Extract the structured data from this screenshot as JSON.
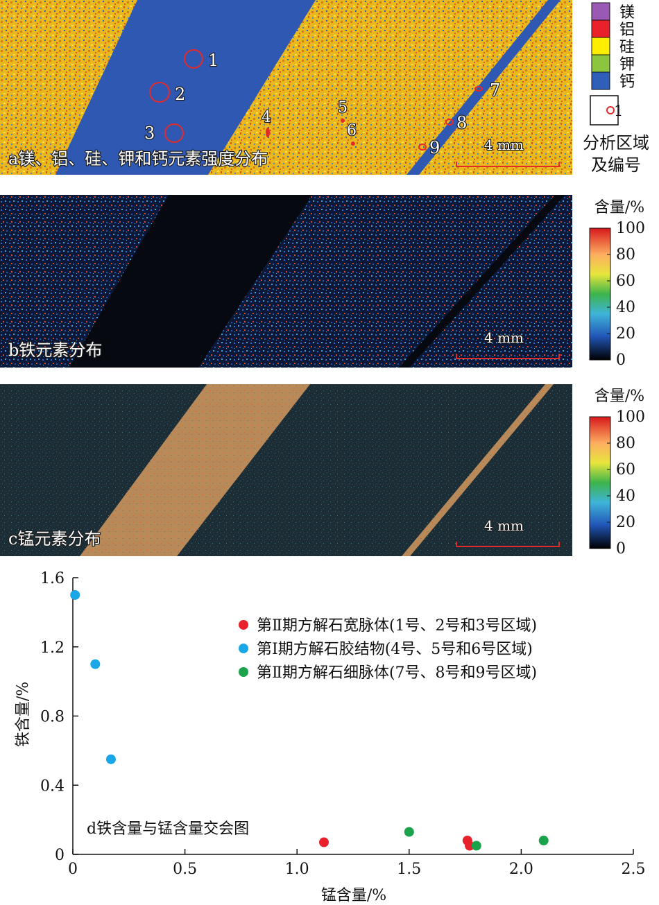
{
  "panel_a": {
    "caption": "a镁、铝、硅、钾和钙元素强度分布",
    "scale": "4 mm",
    "region_labels": [
      "1",
      "2",
      "3",
      "4",
      "5",
      "6",
      "7",
      "8",
      "9"
    ],
    "legend_items": [
      {
        "label": "镁",
        "color": "#9b59b6"
      },
      {
        "label": "铝",
        "color": "#e8212b"
      },
      {
        "label": "硅",
        "color": "#ffee00"
      },
      {
        "label": "钾",
        "color": "#8cc63f"
      },
      {
        "label": "钙",
        "color": "#2f5fb8"
      }
    ],
    "region_marker_label": "1",
    "region_legend_text": [
      "分析区域",
      "及编号"
    ]
  },
  "panel_b": {
    "caption": "b铁元素分布",
    "scale": "4 mm",
    "colorbar_title": "含量/%",
    "colorbar_ticks": [
      "100",
      "80",
      "60",
      "40",
      "20",
      "0"
    ]
  },
  "panel_c": {
    "caption": "c锰元素分布",
    "scale": "4 mm",
    "colorbar_title": "含量/%",
    "colorbar_ticks": [
      "100",
      "80",
      "60",
      "40",
      "20",
      "0"
    ]
  },
  "chart_data": {
    "type": "scatter",
    "title": "d铁含量与锰含量交会图",
    "xlabel": "锰含量/%",
    "ylabel": "铁含量/%",
    "xlim": [
      0,
      2.5
    ],
    "ylim": [
      0,
      1.6
    ],
    "xticks": [
      "0",
      "0.5",
      "1.0",
      "1.5",
      "2.0",
      "2.5"
    ],
    "yticks": [
      "0",
      "0.4",
      "0.8",
      "1.2",
      "1.6"
    ],
    "legend_position": "upper-right",
    "series": [
      {
        "name": "第Ⅱ期方解石宽脉体(1号、2号和3号区域)",
        "color": "#e8212b",
        "points": [
          [
            1.12,
            0.07
          ],
          [
            1.76,
            0.08
          ],
          [
            1.77,
            0.05
          ]
        ]
      },
      {
        "name": "第Ⅰ期方解石胶结物(4号、5号和6号区域)",
        "color": "#1aa7e8",
        "points": [
          [
            0.01,
            1.5
          ],
          [
            0.1,
            1.1
          ],
          [
            0.17,
            0.55
          ]
        ]
      },
      {
        "name": "第Ⅱ期方解石细脉体(7号、8号和9号区域)",
        "color": "#1aa34a",
        "points": [
          [
            1.5,
            0.13
          ],
          [
            1.8,
            0.05
          ],
          [
            2.1,
            0.08
          ]
        ]
      }
    ]
  }
}
